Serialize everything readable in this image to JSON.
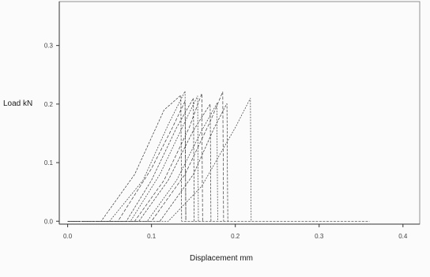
{
  "chart_data": {
    "type": "line",
    "title": "",
    "xlabel": "Displacement mm",
    "ylabel": "Load kN",
    "xlim": [
      -0.01,
      0.42
    ],
    "ylim": [
      -0.005,
      0.375
    ],
    "grid": false,
    "x_ticks": [
      {
        "value": 0.0,
        "label": "0.0"
      },
      {
        "value": 0.1,
        "label": "0.1"
      },
      {
        "value": 0.2,
        "label": "0.2"
      },
      {
        "value": 0.3,
        "label": "0.3"
      },
      {
        "value": 0.4,
        "label": "0.4"
      }
    ],
    "y_ticks": [
      {
        "value": 0.0,
        "label": "0.0"
      },
      {
        "value": 0.1,
        "label": "0.1"
      },
      {
        "value": 0.2,
        "label": "0.2"
      },
      {
        "value": 0.3,
        "label": "0.3"
      }
    ],
    "series": [
      {
        "x": [
          0.0,
          0.04,
          0.08,
          0.115,
          0.135,
          0.136,
          0.36
        ],
        "y": [
          0.0,
          0.0,
          0.08,
          0.19,
          0.215,
          0.0,
          0.0
        ]
      },
      {
        "x": [
          0.0,
          0.05,
          0.09,
          0.12,
          0.14,
          0.141
        ],
        "y": [
          0.0,
          0.0,
          0.07,
          0.165,
          0.222,
          0.0
        ]
      },
      {
        "x": [
          0.0,
          0.06,
          0.1,
          0.125,
          0.14,
          0.141
        ],
        "y": [
          0.0,
          0.0,
          0.09,
          0.16,
          0.205,
          0.0
        ]
      },
      {
        "x": [
          0.0,
          0.07,
          0.1,
          0.13,
          0.15,
          0.151
        ],
        "y": [
          0.0,
          0.0,
          0.07,
          0.16,
          0.21,
          0.0
        ]
      },
      {
        "x": [
          0.0,
          0.075,
          0.11,
          0.14,
          0.155,
          0.156
        ],
        "y": [
          0.0,
          0.0,
          0.08,
          0.17,
          0.214,
          0.0
        ]
      },
      {
        "x": [
          0.0,
          0.08,
          0.115,
          0.145,
          0.16,
          0.161
        ],
        "y": [
          0.0,
          0.0,
          0.07,
          0.16,
          0.218,
          0.0
        ]
      },
      {
        "x": [
          0.0,
          0.085,
          0.12,
          0.15,
          0.17,
          0.171
        ],
        "y": [
          0.0,
          0.0,
          0.07,
          0.155,
          0.2,
          0.0
        ]
      },
      {
        "x": [
          0.0,
          0.095,
          0.13,
          0.16,
          0.178,
          0.179
        ],
        "y": [
          0.0,
          0.0,
          0.07,
          0.155,
          0.201,
          0.0
        ]
      },
      {
        "x": [
          0.0,
          0.1,
          0.14,
          0.17,
          0.185,
          0.186
        ],
        "y": [
          0.0,
          0.0,
          0.08,
          0.17,
          0.221,
          0.0
        ]
      },
      {
        "x": [
          0.0,
          0.11,
          0.15,
          0.175,
          0.19,
          0.191
        ],
        "y": [
          0.0,
          0.0,
          0.08,
          0.16,
          0.201,
          0.0
        ]
      },
      {
        "x": [
          0.0,
          0.12,
          0.16,
          0.2,
          0.218,
          0.219
        ],
        "y": [
          0.0,
          0.0,
          0.06,
          0.16,
          0.21,
          0.0
        ]
      }
    ],
    "colors": {
      "axes": "#333333",
      "series": "#3a3a3a",
      "frame": "#777777"
    }
  }
}
